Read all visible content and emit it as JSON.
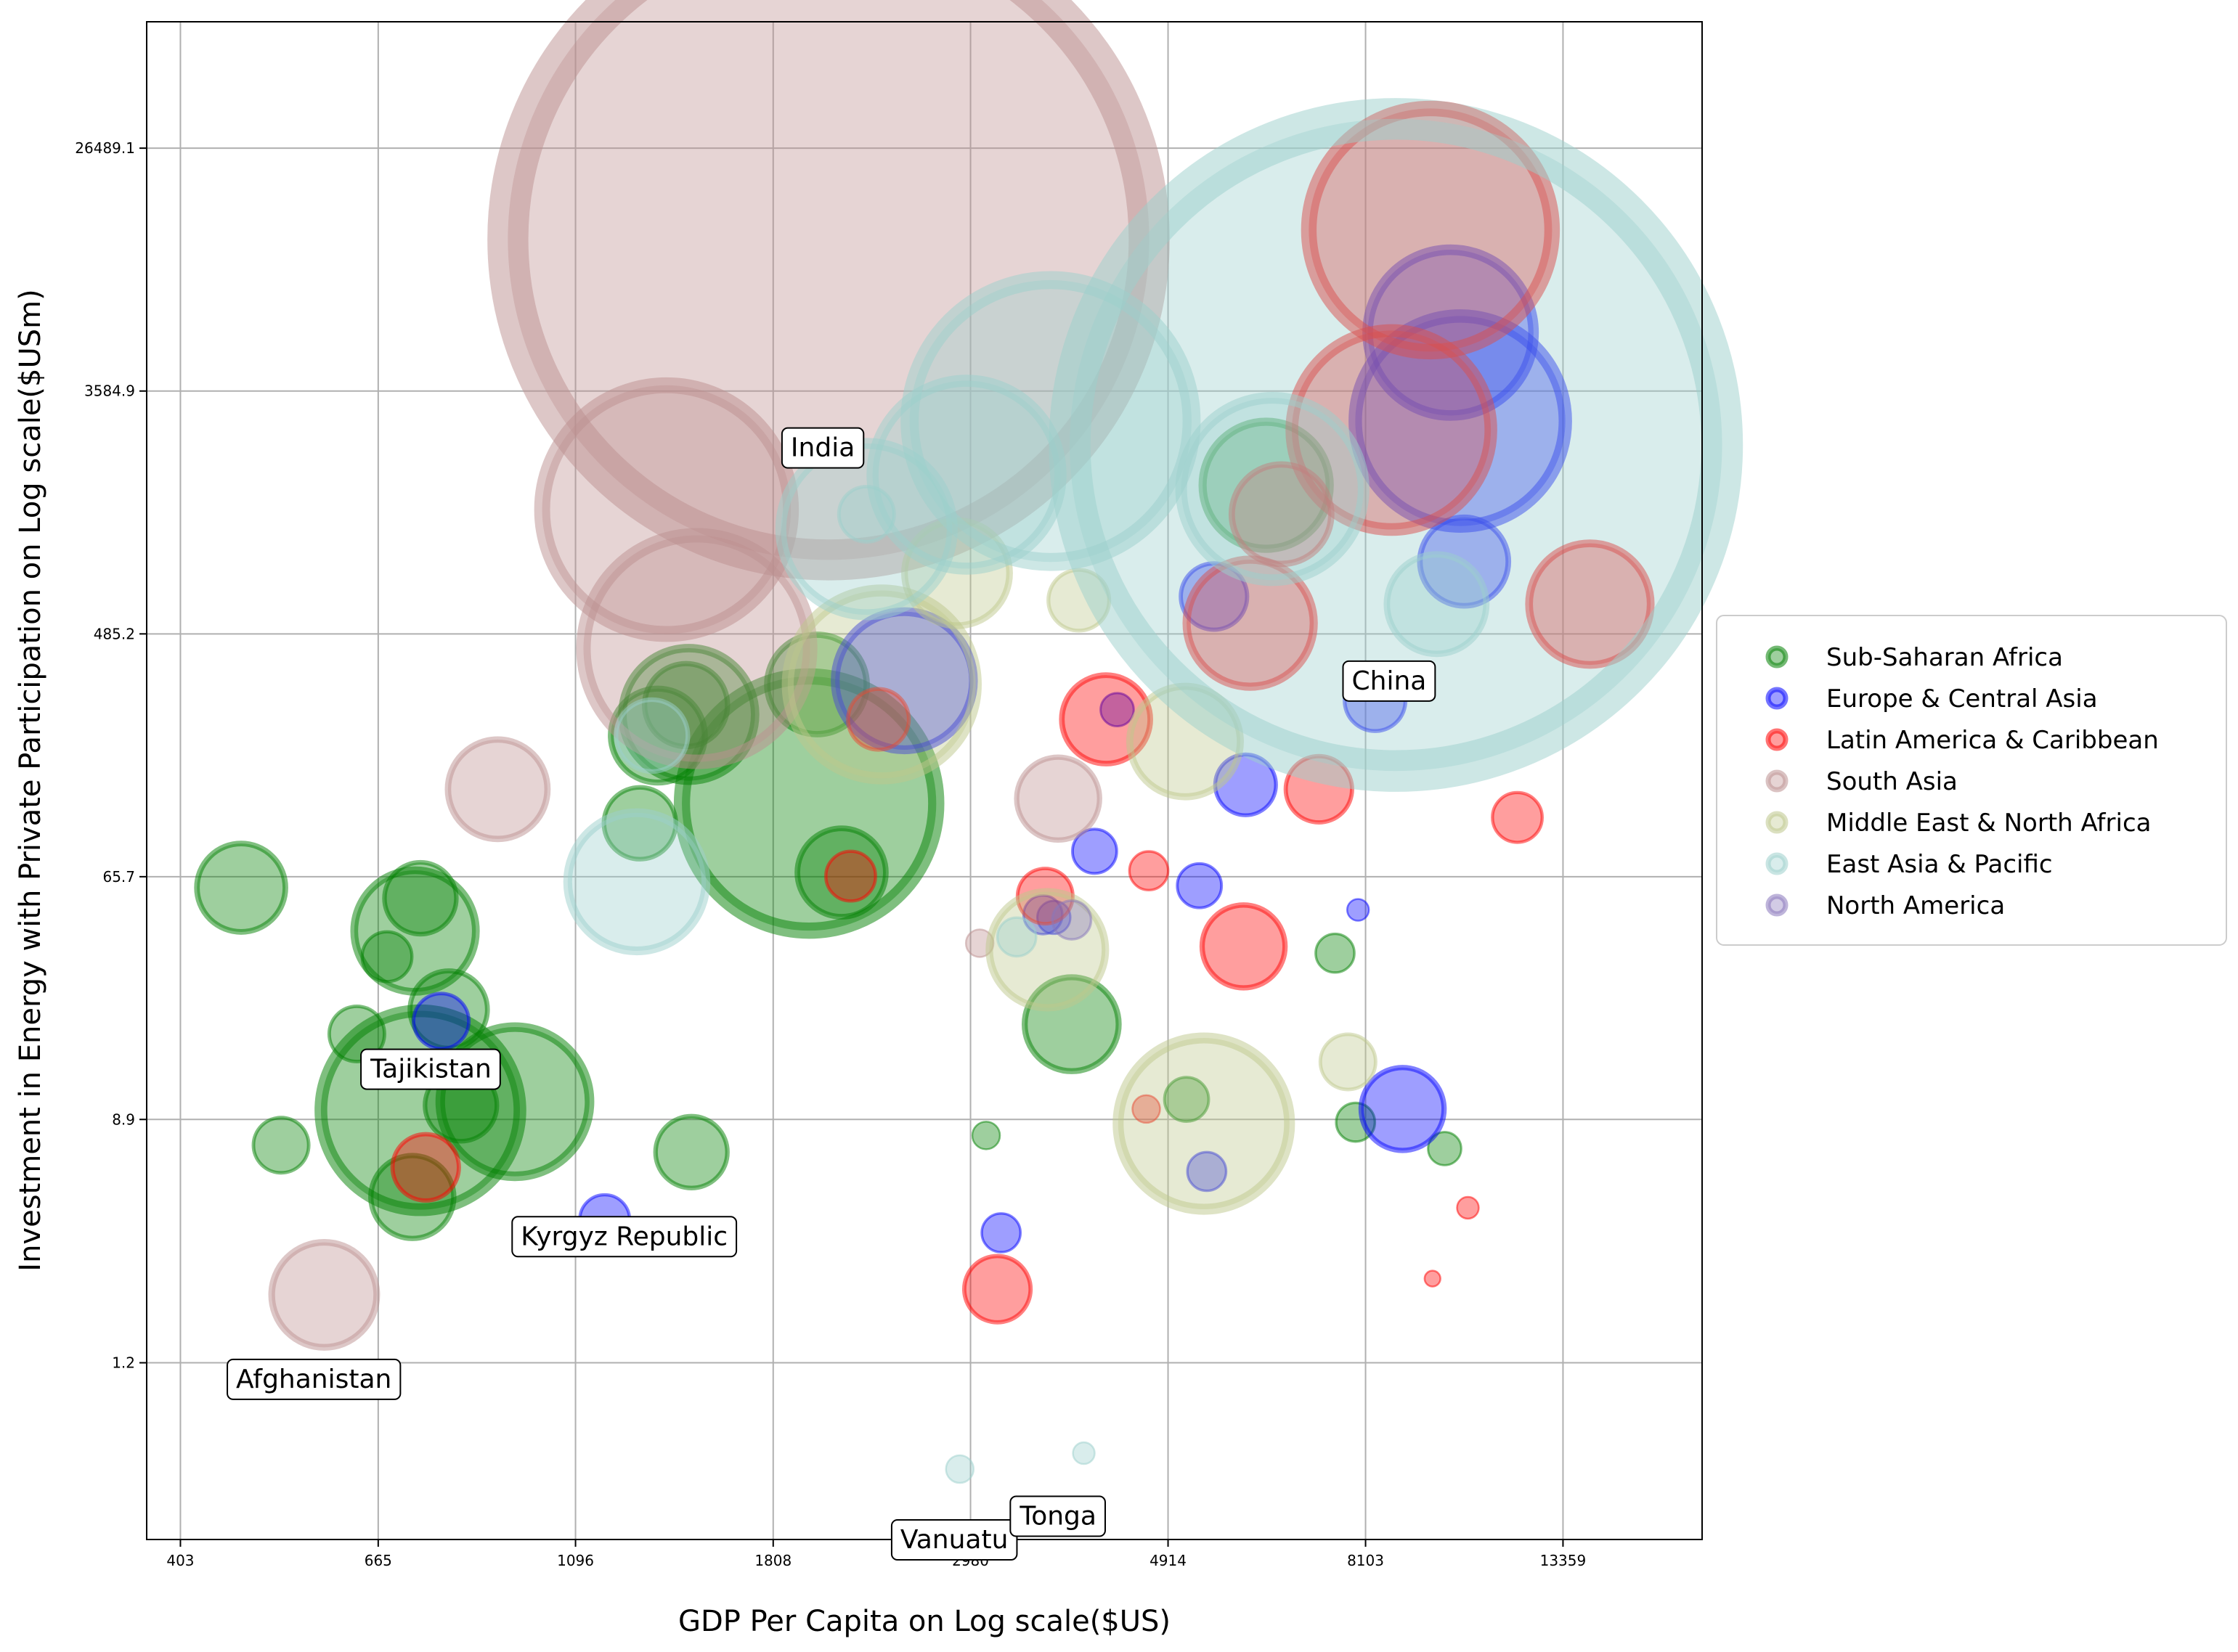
{
  "chart_data": {
    "type": "scatter",
    "subtype": "bubble",
    "title": "",
    "xlabel": "GDP Per Capita on Log scale($US)",
    "ylabel": "Investment in Energy with Private Participation on Log scale($USm)",
    "x_scale": "log",
    "y_scale": "log",
    "xlim": [
      370,
      19000
    ],
    "ylim": [
      0.28,
      75000
    ],
    "x_ticks": [
      403,
      665,
      1096,
      1808,
      2980,
      4914,
      8103,
      13359
    ],
    "x_tick_labels": [
      "403",
      "665",
      "1096",
      "1808",
      "2980",
      "4914",
      "8103",
      "13359"
    ],
    "y_ticks": [
      1.2,
      8.9,
      65.7,
      485.2,
      3584.9,
      26489.1
    ],
    "y_tick_labels": [
      "1.2",
      "8.9",
      "65.7",
      "485.2",
      "3584.9",
      "26489.1"
    ],
    "grid": true,
    "legend_position": "center-right, outside plot",
    "legend": [
      {
        "name": "Sub-Saharan Africa",
        "color": "#008000"
      },
      {
        "name": "Europe & Central Asia",
        "color": "#0000ff"
      },
      {
        "name": "Latin America & Caribbean",
        "color": "#ff0000"
      },
      {
        "name": "South Asia",
        "color": "#bc8f8f"
      },
      {
        "name": "Middle East & North Africa",
        "color": "#bdc78c"
      },
      {
        "name": "East Asia & Pacific",
        "color": "#9ccfcc"
      },
      {
        "name": "North America",
        "color": "#8877bb"
      }
    ],
    "annotations": [
      {
        "text": "India",
        "x": 2050,
        "y": 2250
      },
      {
        "text": "China",
        "x": 8600,
        "y": 330
      },
      {
        "text": "Tajikistan",
        "x": 760,
        "y": 13.5
      },
      {
        "text": "Kyrgyz Republic",
        "x": 1240,
        "y": 3.4
      },
      {
        "text": "Afghanistan",
        "x": 565,
        "y": 1.05
      },
      {
        "text": "Vanuatu",
        "x": 2860,
        "y": 0.28
      },
      {
        "text": "Tonga",
        "x": 3720,
        "y": 0.34
      }
    ],
    "series": [
      {
        "name": "Sub-Saharan Africa",
        "points": [
          {
            "x": 470,
            "y": 60,
            "size": 16
          },
          {
            "x": 520,
            "y": 7.2,
            "size": 10
          },
          {
            "x": 630,
            "y": 18,
            "size": 10
          },
          {
            "x": 680,
            "y": 34,
            "size": 9
          },
          {
            "x": 725,
            "y": 4.7,
            "size": 15
          },
          {
            "x": 730,
            "y": 42,
            "size": 22
          },
          {
            "x": 740,
            "y": 9.6,
            "size": 36
          },
          {
            "x": 740,
            "y": 55,
            "size": 13
          },
          {
            "x": 795,
            "y": 22,
            "size": 14
          },
          {
            "x": 820,
            "y": 10,
            "size": 13
          },
          {
            "x": 940,
            "y": 10.3,
            "size": 27
          },
          {
            "x": 1290,
            "y": 102,
            "size": 13
          },
          {
            "x": 1350,
            "y": 210,
            "size": 17
          },
          {
            "x": 1450,
            "y": 270,
            "size": 15
          },
          {
            "x": 1460,
            "y": 250,
            "size": 24
          },
          {
            "x": 1470,
            "y": 6.8,
            "size": 13
          },
          {
            "x": 1980,
            "y": 120,
            "size": 46
          },
          {
            "x": 2020,
            "y": 320,
            "size": 18
          },
          {
            "x": 2150,
            "y": 68,
            "size": 16
          },
          {
            "x": 3100,
            "y": 7.8,
            "size": 5
          },
          {
            "x": 3850,
            "y": 19.5,
            "size": 17
          },
          {
            "x": 5150,
            "y": 10.5,
            "size": 8
          },
          {
            "x": 6300,
            "y": 1650,
            "size": 23
          },
          {
            "x": 7500,
            "y": 35,
            "size": 7
          },
          {
            "x": 7900,
            "y": 8.7,
            "size": 7
          },
          {
            "x": 9900,
            "y": 7,
            "size": 6
          }
        ]
      },
      {
        "name": "Europe & Central Asia",
        "points": [
          {
            "x": 780,
            "y": 20,
            "size": 10
          },
          {
            "x": 1180,
            "y": 3.9,
            "size": 9
          },
          {
            "x": 2520,
            "y": 330,
            "size": 25
          },
          {
            "x": 3220,
            "y": 3.5,
            "size": 7
          },
          {
            "x": 3580,
            "y": 48,
            "size": 7
          },
          {
            "x": 3680,
            "y": 47,
            "size": 6
          },
          {
            "x": 4080,
            "y": 81,
            "size": 8
          },
          {
            "x": 4320,
            "y": 260,
            "size": 6
          },
          {
            "x": 5320,
            "y": 61,
            "size": 8
          },
          {
            "x": 5420,
            "y": 5.8,
            "size": 7
          },
          {
            "x": 5520,
            "y": 660,
            "size": 12
          },
          {
            "x": 5980,
            "y": 140,
            "size": 11
          },
          {
            "x": 7950,
            "y": 50,
            "size": 4
          },
          {
            "x": 8300,
            "y": 280,
            "size": 11
          },
          {
            "x": 8900,
            "y": 9.7,
            "size": 15
          },
          {
            "x": 10050,
            "y": 5800,
            "size": 30
          },
          {
            "x": 10300,
            "y": 2800,
            "size": 38
          },
          {
            "x": 10400,
            "y": 880,
            "size": 16
          }
        ]
      },
      {
        "name": "Latin America & Caribbean",
        "points": [
          {
            "x": 750,
            "y": 6.0,
            "size": 12
          },
          {
            "x": 2200,
            "y": 66,
            "size": 9
          },
          {
            "x": 2360,
            "y": 240,
            "size": 11
          },
          {
            "x": 3190,
            "y": 2.2,
            "size": 12
          },
          {
            "x": 3600,
            "y": 56,
            "size": 10
          },
          {
            "x": 4200,
            "y": 240,
            "size": 16
          },
          {
            "x": 4680,
            "y": 69,
            "size": 7
          },
          {
            "x": 4650,
            "y": 9.7,
            "size": 5
          },
          {
            "x": 5950,
            "y": 37,
            "size": 15
          },
          {
            "x": 6050,
            "y": 530,
            "size": 23
          },
          {
            "x": 6550,
            "y": 1300,
            "size": 18
          },
          {
            "x": 7200,
            "y": 135,
            "size": 12
          },
          {
            "x": 8650,
            "y": 2600,
            "size": 36
          },
          {
            "x": 9550,
            "y": 13500,
            "size": 44
          },
          {
            "x": 9600,
            "y": 2.4,
            "size": 3
          },
          {
            "x": 10500,
            "y": 4.3,
            "size": 4
          },
          {
            "x": 11900,
            "y": 107,
            "size": 9
          },
          {
            "x": 14300,
            "y": 620,
            "size": 22
          }
        ]
      },
      {
        "name": "South Asia",
        "points": [
          {
            "x": 580,
            "y": 2.1,
            "size": 19
          },
          {
            "x": 900,
            "y": 135,
            "size": 18
          },
          {
            "x": 1380,
            "y": 1350,
            "size": 45
          },
          {
            "x": 1490,
            "y": 430,
            "size": 41
          },
          {
            "x": 2080,
            "y": 12500,
            "size": 116
          },
          {
            "x": 3050,
            "y": 38,
            "size": 5
          },
          {
            "x": 3720,
            "y": 125,
            "size": 15
          }
        ]
      },
      {
        "name": "Middle East & North Africa",
        "points": [
          {
            "x": 2380,
            "y": 320,
            "size": 34
          },
          {
            "x": 2880,
            "y": 800,
            "size": 19
          },
          {
            "x": 3620,
            "y": 36,
            "size": 21
          },
          {
            "x": 3920,
            "y": 640,
            "size": 11
          },
          {
            "x": 5130,
            "y": 200,
            "size": 20
          },
          {
            "x": 5380,
            "y": 8.6,
            "size": 31
          },
          {
            "x": 7750,
            "y": 14.3,
            "size": 10
          }
        ]
      },
      {
        "name": "East Asia & Pacific",
        "points": [
          {
            "x": 1280,
            "y": 63,
            "size": 25
          },
          {
            "x": 1330,
            "y": 210,
            "size": 13
          },
          {
            "x": 2290,
            "y": 1150,
            "size": 31
          },
          {
            "x": 2290,
            "y": 1300,
            "size": 10
          },
          {
            "x": 2950,
            "y": 1800,
            "size": 34
          },
          {
            "x": 3350,
            "y": 40,
            "size": 7
          },
          {
            "x": 3650,
            "y": 2800,
            "size": 51
          },
          {
            "x": 2900,
            "y": 0.5,
            "size": 5
          },
          {
            "x": 3970,
            "y": 0.57,
            "size": 4
          },
          {
            "x": 6400,
            "y": 1600,
            "size": 33
          },
          {
            "x": 8750,
            "y": 2300,
            "size": 118
          },
          {
            "x": 9700,
            "y": 620,
            "size": 18
          }
        ]
      },
      {
        "name": "North America",
        "points": [
          {
            "x": 3850,
            "y": 46,
            "size": 7
          }
        ]
      }
    ]
  }
}
